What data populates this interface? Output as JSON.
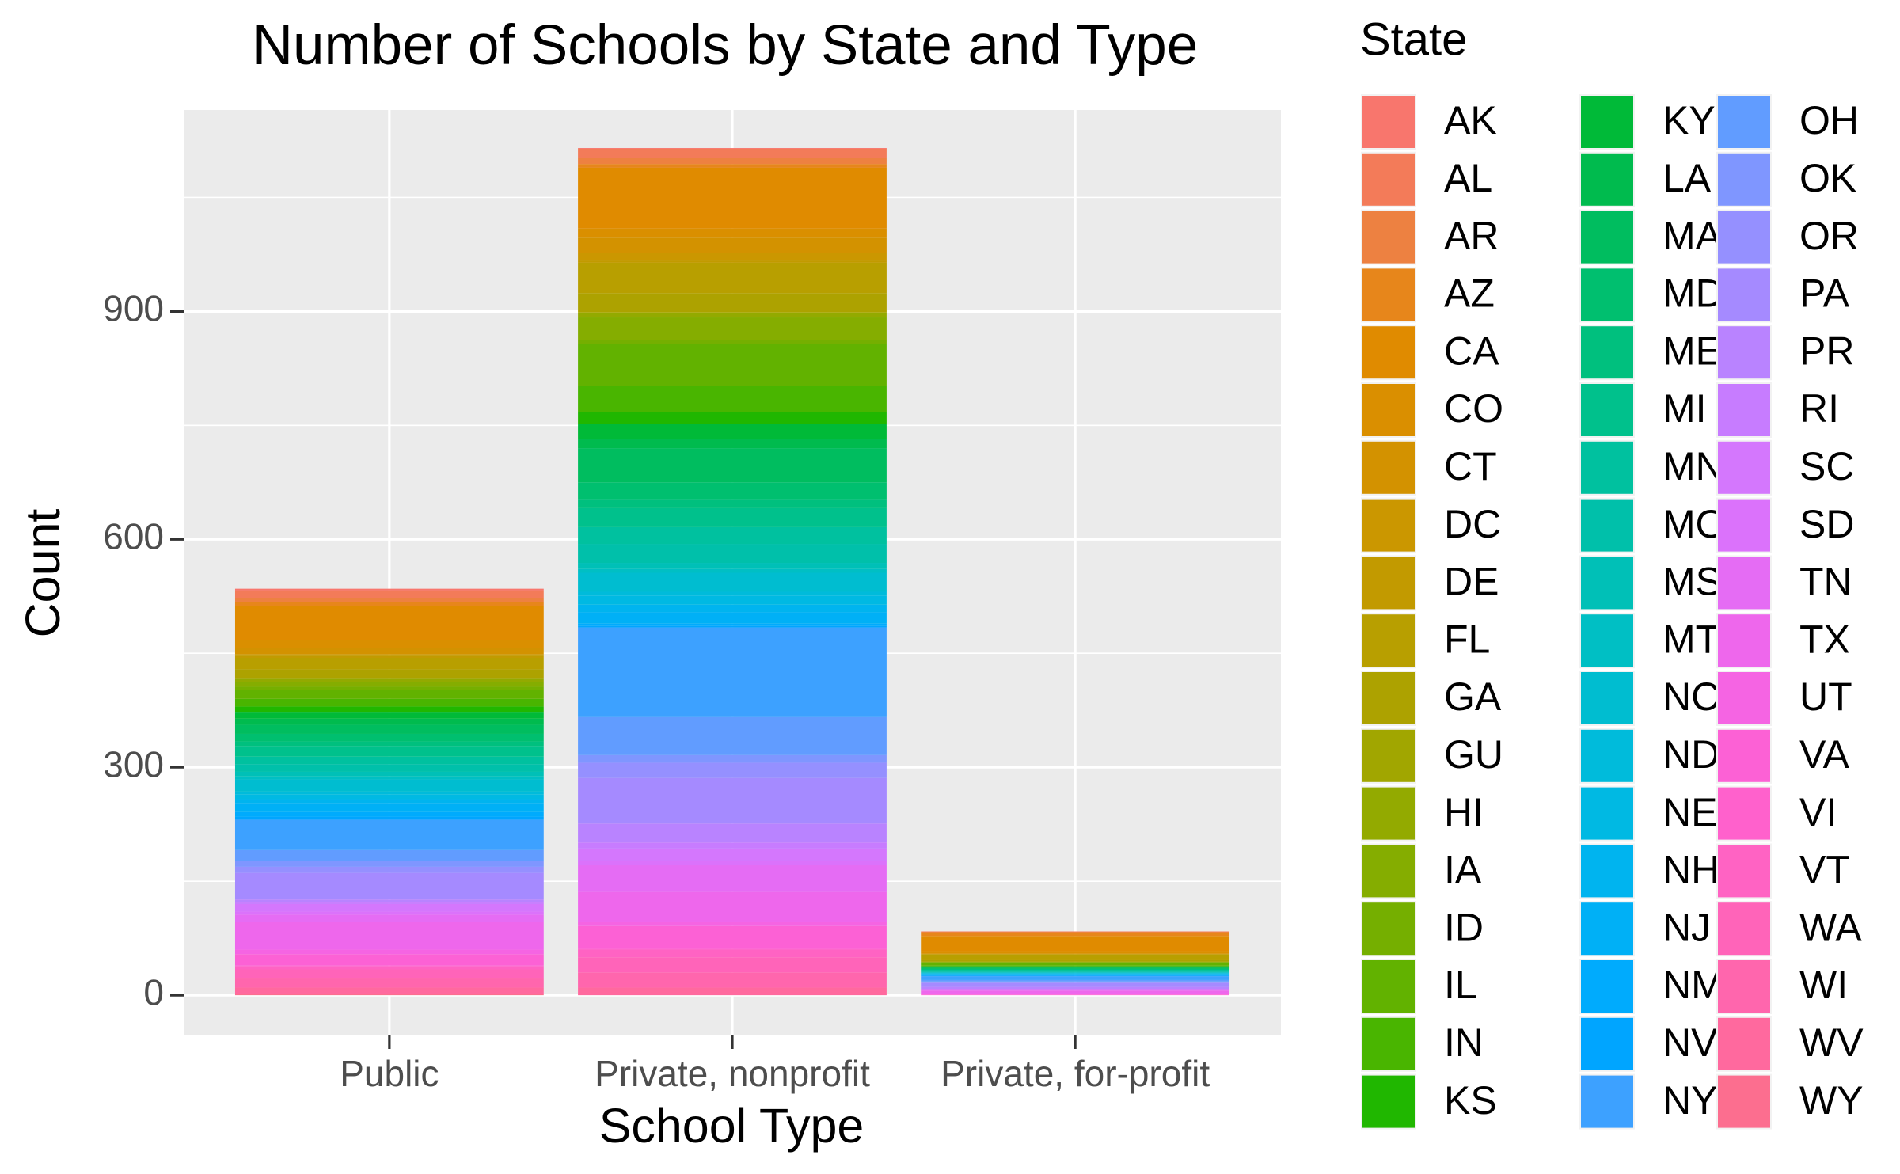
{
  "chart_data": {
    "type": "stacked_bar",
    "title": "Number of Schools by State and Type",
    "x_label": "School Type",
    "y_label": "Count",
    "legend_title": "State",
    "legend_position": "right",
    "grid": true,
    "categories": [
      "Public",
      "Private, nonprofit",
      "Private, for-profit"
    ],
    "ylim": [
      -53,
      1165
    ],
    "yticks": [
      0,
      300,
      600,
      900
    ],
    "series": [
      {
        "name": "AK",
        "color": "#F8766D",
        "values": [
          2,
          1,
          0
        ]
      },
      {
        "name": "AL",
        "color": "#F37B59",
        "values": [
          10,
          12,
          1
        ]
      },
      {
        "name": "AR",
        "color": "#ED8141",
        "values": [
          6,
          8,
          0
        ]
      },
      {
        "name": "AZ",
        "color": "#E7861B",
        "values": [
          5,
          5,
          5
        ]
      },
      {
        "name": "CA",
        "color": "#E08B00",
        "values": [
          45,
          80,
          20
        ]
      },
      {
        "name": "CO",
        "color": "#DA8F00",
        "values": [
          10,
          12,
          3
        ]
      },
      {
        "name": "CT",
        "color": "#D39200",
        "values": [
          8,
          20,
          1
        ]
      },
      {
        "name": "DC",
        "color": "#CB9700",
        "values": [
          2,
          10,
          0
        ]
      },
      {
        "name": "DE",
        "color": "#C29A00",
        "values": [
          3,
          3,
          0
        ]
      },
      {
        "name": "FL",
        "color": "#B89F00",
        "values": [
          15,
          40,
          8
        ]
      },
      {
        "name": "GA",
        "color": "#ADA200",
        "values": [
          12,
          25,
          2
        ]
      },
      {
        "name": "GU",
        "color": "#A1A600",
        "values": [
          1,
          1,
          0
        ]
      },
      {
        "name": "HI",
        "color": "#93AA00",
        "values": [
          4,
          6,
          0
        ]
      },
      {
        "name": "IA",
        "color": "#85AD00",
        "values": [
          6,
          30,
          1
        ]
      },
      {
        "name": "ID",
        "color": "#75AF00",
        "values": [
          4,
          5,
          0
        ]
      },
      {
        "name": "IL",
        "color": "#62B200",
        "values": [
          12,
          55,
          4
        ]
      },
      {
        "name": "IN",
        "color": "#49B500",
        "values": [
          10,
          35,
          1
        ]
      },
      {
        "name": "KS",
        "color": "#20B700",
        "values": [
          8,
          15,
          0
        ]
      },
      {
        "name": "KY",
        "color": "#00BA38",
        "values": [
          8,
          20,
          1
        ]
      },
      {
        "name": "LA",
        "color": "#00BB4E",
        "values": [
          8,
          12,
          1
        ]
      },
      {
        "name": "MA",
        "color": "#00BD5F",
        "values": [
          12,
          45,
          1
        ]
      },
      {
        "name": "MD",
        "color": "#00BF6F",
        "values": [
          10,
          22,
          1
        ]
      },
      {
        "name": "ME",
        "color": "#00C07E",
        "values": [
          6,
          12,
          0
        ]
      },
      {
        "name": "MI",
        "color": "#00C18C",
        "values": [
          14,
          25,
          1
        ]
      },
      {
        "name": "MN",
        "color": "#00C19F",
        "values": [
          10,
          22,
          2
        ]
      },
      {
        "name": "MO",
        "color": "#00C0AA",
        "values": [
          10,
          25,
          1
        ]
      },
      {
        "name": "MS",
        "color": "#00C0B7",
        "values": [
          6,
          8,
          0
        ]
      },
      {
        "name": "MT",
        "color": "#00BFC4",
        "values": [
          4,
          5,
          0
        ]
      },
      {
        "name": "NC",
        "color": "#00BDD0",
        "values": [
          16,
          25,
          1
        ]
      },
      {
        "name": "ND",
        "color": "#00BBDB",
        "values": [
          4,
          5,
          0
        ]
      },
      {
        "name": "NE",
        "color": "#00B9E3",
        "values": [
          6,
          12,
          1
        ]
      },
      {
        "name": "NH",
        "color": "#00B4EF",
        "values": [
          5,
          10,
          0
        ]
      },
      {
        "name": "NJ",
        "color": "#00B0F6",
        "values": [
          12,
          15,
          2
        ]
      },
      {
        "name": "NM",
        "color": "#00ABFD",
        "values": [
          6,
          3,
          0
        ]
      },
      {
        "name": "NV",
        "color": "#00A5FF",
        "values": [
          4,
          2,
          1
        ]
      },
      {
        "name": "NY",
        "color": "#3DA1FF",
        "values": [
          40,
          118,
          5
        ]
      },
      {
        "name": "OH",
        "color": "#619CFF",
        "values": [
          14,
          50,
          2
        ]
      },
      {
        "name": "OK",
        "color": "#7F96FF",
        "values": [
          8,
          10,
          1
        ]
      },
      {
        "name": "OR",
        "color": "#9590FF",
        "values": [
          8,
          20,
          1
        ]
      },
      {
        "name": "PA",
        "color": "#A58AFF",
        "values": [
          35,
          60,
          5
        ]
      },
      {
        "name": "PR",
        "color": "#B983FF",
        "values": [
          4,
          25,
          3
        ]
      },
      {
        "name": "RI",
        "color": "#C77CFF",
        "values": [
          2,
          8,
          0
        ]
      },
      {
        "name": "SC",
        "color": "#D477FD",
        "values": [
          10,
          16,
          0
        ]
      },
      {
        "name": "SD",
        "color": "#DB72FB",
        "values": [
          4,
          6,
          0
        ]
      },
      {
        "name": "TN",
        "color": "#E56CF4",
        "values": [
          10,
          35,
          2
        ]
      },
      {
        "name": "TX",
        "color": "#EE67EC",
        "values": [
          36,
          40,
          4
        ]
      },
      {
        "name": "UT",
        "color": "#F564E3",
        "values": [
          6,
          5,
          1
        ]
      },
      {
        "name": "VA",
        "color": "#FC61D5",
        "values": [
          15,
          30,
          1
        ]
      },
      {
        "name": "VI",
        "color": "#FF61CC",
        "values": [
          1,
          1,
          0
        ]
      },
      {
        "name": "VT",
        "color": "#FF63C3",
        "values": [
          4,
          10,
          0
        ]
      },
      {
        "name": "WA",
        "color": "#FF64B9",
        "values": [
          12,
          20,
          0
        ]
      },
      {
        "name": "WI",
        "color": "#FF66AD",
        "values": [
          12,
          20,
          0
        ]
      },
      {
        "name": "WV",
        "color": "#FF699E",
        "values": [
          8,
          10,
          0
        ]
      },
      {
        "name": "WY",
        "color": "#FC6E8F",
        "values": [
          2,
          0,
          0
        ]
      }
    ]
  }
}
